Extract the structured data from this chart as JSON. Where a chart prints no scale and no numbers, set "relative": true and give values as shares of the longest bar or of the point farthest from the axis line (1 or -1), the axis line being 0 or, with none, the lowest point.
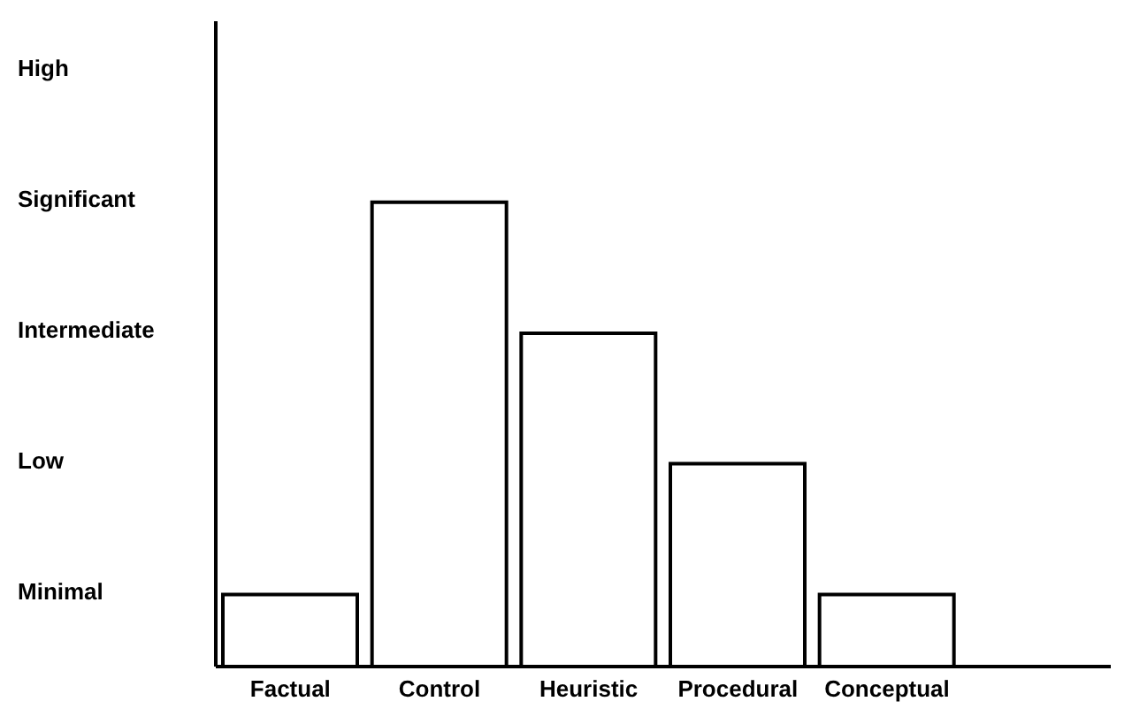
{
  "chart_data": {
    "type": "bar",
    "relative": true,
    "categories": [
      "Factual",
      "Control",
      "Heuristic",
      "Procedural",
      "Conceptual",
      null
    ],
    "series": [
      {
        "color": "#000000",
        "values": [
          0.155,
          1,
          0.718,
          0.437,
          0.155,
          null
        ]
      }
    ],
    "annotations": [
      "High",
      "Significant",
      "Intermediate",
      "Low",
      "Minimal"
    ],
    "grid": false
  }
}
